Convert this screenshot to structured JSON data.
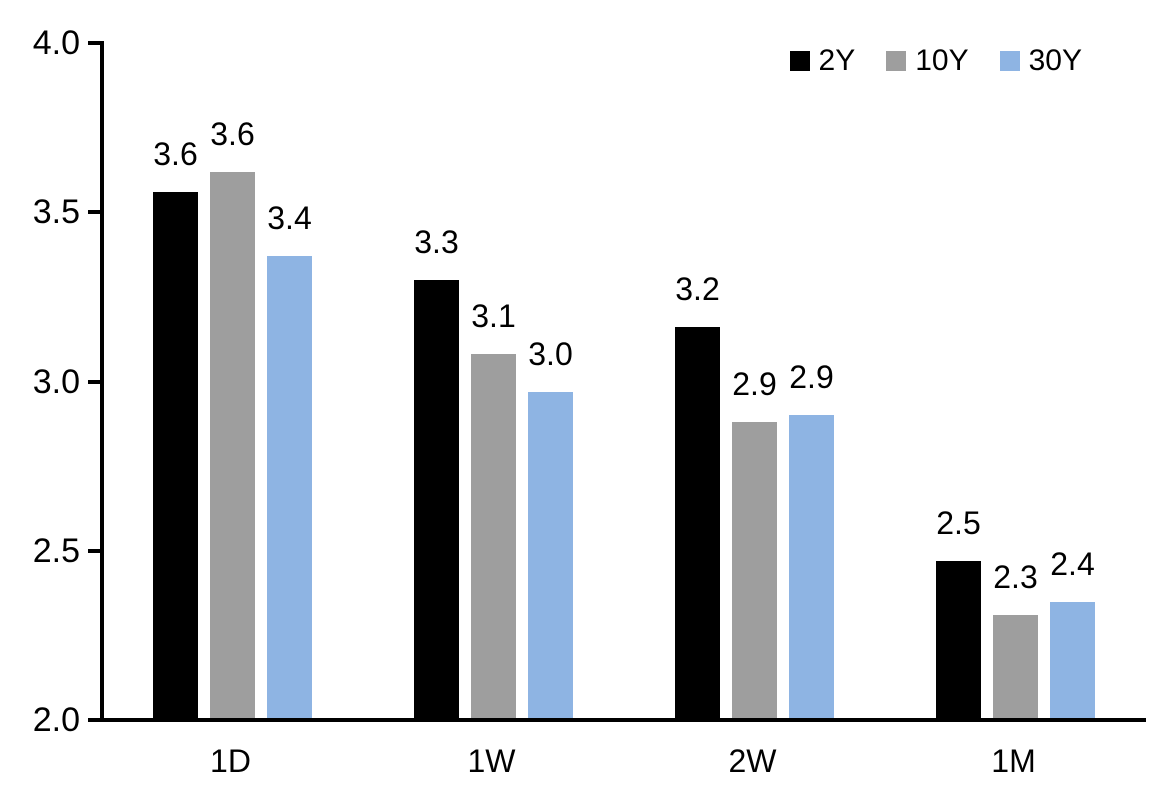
{
  "chart_data": {
    "type": "bar",
    "title": "",
    "xlabel": "",
    "ylabel": "",
    "categories": [
      "1D",
      "1W",
      "2W",
      "1M"
    ],
    "series": [
      {
        "name": "2Y",
        "color": "#000000",
        "values": [
          3.56,
          3.3,
          3.16,
          2.47
        ],
        "data_labels": [
          "3.6",
          "3.3",
          "3.2",
          "2.5"
        ]
      },
      {
        "name": "10Y",
        "color": "#9E9E9E",
        "values": [
          3.62,
          3.08,
          2.88,
          2.31
        ],
        "data_labels": [
          "3.6",
          "3.1",
          "2.9",
          "2.3"
        ]
      },
      {
        "name": "30Y",
        "color": "#8EB4E3",
        "values": [
          3.37,
          2.97,
          2.9,
          2.35
        ],
        "data_labels": [
          "3.4",
          "3.0",
          "2.9",
          "2.4"
        ]
      }
    ],
    "ylim": [
      2.0,
      4.0
    ],
    "yticks": [
      2.0,
      2.5,
      3.0,
      3.5,
      4.0
    ],
    "ytick_labels": [
      "2.0",
      "2.5",
      "3.0",
      "3.5",
      "4.0"
    ],
    "grid": false,
    "legend_position": "top-right",
    "axis_color": "#000000",
    "background_color": "#ffffff"
  }
}
